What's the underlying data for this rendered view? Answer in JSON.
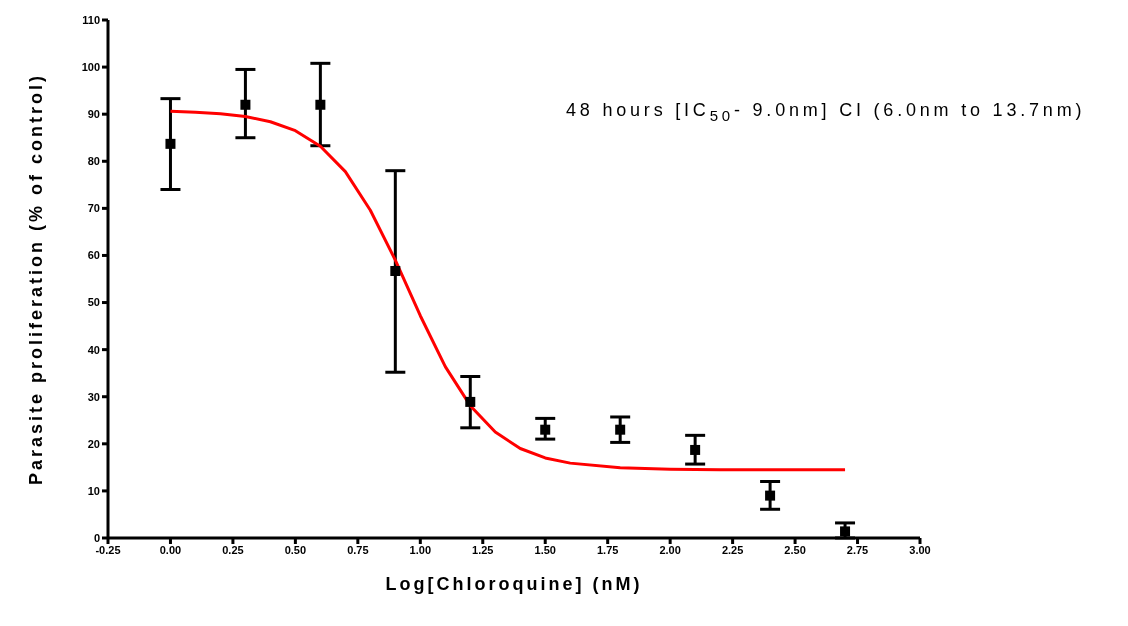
{
  "chart_data": {
    "type": "scatter",
    "xlabel": "Log[Chloroquine] (nM)",
    "ylabel": "Parasite proliferation (% of control)",
    "annotations": [
      "48 hours [IC$_{50}$- 9.0nm] CI (6.0nm to 13.7nm)"
    ],
    "xlim": [
      -0.25,
      3.0
    ],
    "xticks": [
      {
        "value": -0.25,
        "label": "-0.25"
      },
      {
        "value": 0,
        "label": "0.00"
      },
      {
        "value": 0.25,
        "label": "0.25"
      },
      {
        "value": 0.5,
        "label": "0.50"
      },
      {
        "value": 0.75,
        "label": "0.75"
      },
      {
        "value": 1,
        "label": "1.00"
      },
      {
        "value": 1.25,
        "label": "1.25"
      },
      {
        "value": 1.5,
        "label": "1.50"
      },
      {
        "value": 1.75,
        "label": "1.75"
      },
      {
        "value": 2,
        "label": "2.00"
      },
      {
        "value": 2.25,
        "label": "2.25"
      },
      {
        "value": 2.5,
        "label": "2.50"
      },
      {
        "value": 2.75,
        "label": "2.75"
      },
      {
        "value": 3,
        "label": "3.00"
      }
    ],
    "ylim": [
      0,
      110
    ],
    "yticks": [
      0,
      10,
      20,
      30,
      40,
      50,
      60,
      70,
      80,
      90,
      100,
      110
    ],
    "grid": false,
    "legend": false,
    "series": [
      {
        "color": "#000000",
        "marker": "square",
        "x": [
          0,
          0.3,
          0.6,
          0.9,
          1.2,
          1.5,
          1.8,
          2.1,
          2.4,
          2.7
        ],
        "values": [
          83.7,
          92,
          92,
          56.7,
          28.9,
          23,
          23,
          18.7,
          9,
          1.4
        ],
        "errors": [
          [
            74,
            93.3
          ],
          [
            85,
            99.5
          ],
          [
            83.3,
            100.8
          ],
          [
            35.2,
            78
          ],
          [
            23.4,
            34.3
          ],
          [
            21,
            25.4
          ],
          [
            20.3,
            25.7
          ],
          [
            15.7,
            21.8
          ],
          [
            6.1,
            12
          ],
          [
            0,
            3.2
          ]
        ]
      },
      {
        "type": "line",
        "color": "#ff0000",
        "marker": "none",
        "line_style": "solid",
        "x": [
          0,
          0.1,
          0.2,
          0.3,
          0.4,
          0.5,
          0.6,
          0.7,
          0.8,
          0.9,
          1.0,
          1.1,
          1.2,
          1.3,
          1.4,
          1.5,
          1.6,
          1.8,
          2.0,
          2.2,
          2.7
        ],
        "values": [
          90.6,
          90.4,
          90.1,
          89.5,
          88.4,
          86.5,
          83.2,
          77.8,
          69.6,
          59.0,
          47.2,
          36.4,
          28.1,
          22.5,
          19.0,
          17.0,
          15.9,
          14.9,
          14.6,
          14.5,
          14.5
        ]
      }
    ]
  }
}
